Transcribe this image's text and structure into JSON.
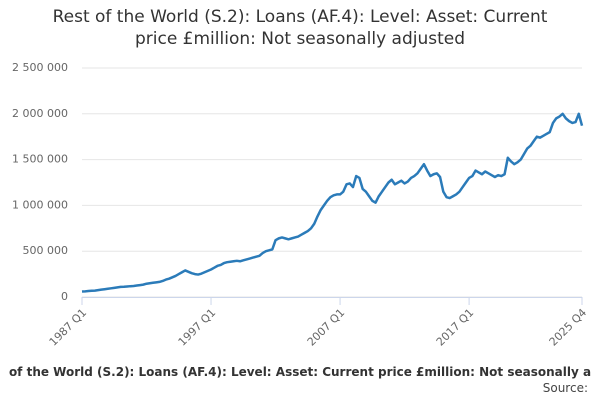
{
  "chart_data": {
    "type": "line",
    "title": [
      "Rest of the World (S.2): Loans (AF.4): Level: Asset: Current",
      "price £million: Not seasonally adjusted"
    ],
    "caption": "of the World (S.2): Loans (AF.4): Level: Asset: Current price £million: Not seasonally a",
    "source": "Source:",
    "color": "#2b7bb9",
    "grid": true,
    "ylim": [
      0,
      2500000
    ],
    "yticks": [
      0,
      {
        "value": 500000,
        "label": "500 000"
      },
      {
        "value": 1000000,
        "label": "1 000 000"
      },
      {
        "value": 1500000,
        "label": "1 500 000"
      },
      {
        "value": 2000000,
        "label": "2 000 000"
      },
      {
        "value": 2500000,
        "label": "2 500 000"
      }
    ],
    "categories": [
      "1987 Q1",
      null,
      null,
      null,
      null,
      null,
      null,
      null,
      null,
      null,
      null,
      null,
      null,
      null,
      null,
      null,
      null,
      null,
      null,
      null,
      null,
      null,
      null,
      null,
      null,
      null,
      null,
      null,
      null,
      null,
      null,
      null,
      null,
      null,
      null,
      null,
      null,
      null,
      null,
      null,
      "1997 Q1",
      null,
      null,
      null,
      null,
      null,
      null,
      null,
      null,
      null,
      null,
      null,
      null,
      null,
      null,
      null,
      null,
      null,
      null,
      null,
      null,
      null,
      null,
      null,
      null,
      null,
      null,
      null,
      null,
      null,
      null,
      null,
      null,
      null,
      null,
      null,
      null,
      null,
      null,
      null,
      "2007 Q1",
      null,
      null,
      null,
      null,
      null,
      null,
      null,
      null,
      null,
      null,
      null,
      null,
      null,
      null,
      null,
      null,
      null,
      null,
      null,
      null,
      null,
      null,
      null,
      null,
      null,
      null,
      null,
      null,
      null,
      null,
      null,
      null,
      null,
      null,
      null,
      null,
      null,
      null,
      null,
      "2017 Q1",
      null,
      null,
      null,
      null,
      null,
      null,
      null,
      null,
      null,
      null,
      null,
      null,
      null,
      null,
      null,
      null,
      null,
      null,
      null,
      null,
      null,
      null,
      null,
      null,
      null,
      null,
      null,
      null,
      null,
      null,
      null,
      null,
      null,
      null,
      "2025 Q4"
    ],
    "values": [
      60000,
      62000,
      65000,
      68000,
      70000,
      75000,
      80000,
      85000,
      90000,
      95000,
      100000,
      105000,
      110000,
      112000,
      115000,
      118000,
      120000,
      125000,
      130000,
      135000,
      145000,
      150000,
      155000,
      160000,
      165000,
      175000,
      190000,
      200000,
      215000,
      230000,
      250000,
      270000,
      290000,
      275000,
      260000,
      250000,
      245000,
      255000,
      270000,
      285000,
      300000,
      320000,
      340000,
      350000,
      370000,
      380000,
      385000,
      390000,
      395000,
      390000,
      400000,
      410000,
      420000,
      430000,
      440000,
      450000,
      480000,
      500000,
      510000,
      520000,
      620000,
      640000,
      650000,
      640000,
      630000,
      640000,
      650000,
      660000,
      680000,
      700000,
      720000,
      750000,
      800000,
      880000,
      950000,
      1000000,
      1050000,
      1090000,
      1110000,
      1120000,
      1120000,
      1150000,
      1230000,
      1240000,
      1200000,
      1320000,
      1300000,
      1180000,
      1150000,
      1100000,
      1050000,
      1030000,
      1100000,
      1150000,
      1200000,
      1250000,
      1280000,
      1230000,
      1250000,
      1270000,
      1240000,
      1260000,
      1300000,
      1320000,
      1350000,
      1400000,
      1450000,
      1380000,
      1320000,
      1340000,
      1350000,
      1310000,
      1150000,
      1090000,
      1080000,
      1100000,
      1120000,
      1150000,
      1200000,
      1250000,
      1300000,
      1320000,
      1380000,
      1360000,
      1340000,
      1370000,
      1350000,
      1330000,
      1310000,
      1330000,
      1320000,
      1340000,
      1520000,
      1480000,
      1450000,
      1470000,
      1500000,
      1560000,
      1620000,
      1650000,
      1700000,
      1750000,
      1740000,
      1760000,
      1780000,
      1800000,
      1900000,
      1950000,
      1970000,
      2000000,
      1950000,
      1920000,
      1900000,
      1910000,
      2000000,
      1870000
    ]
  }
}
